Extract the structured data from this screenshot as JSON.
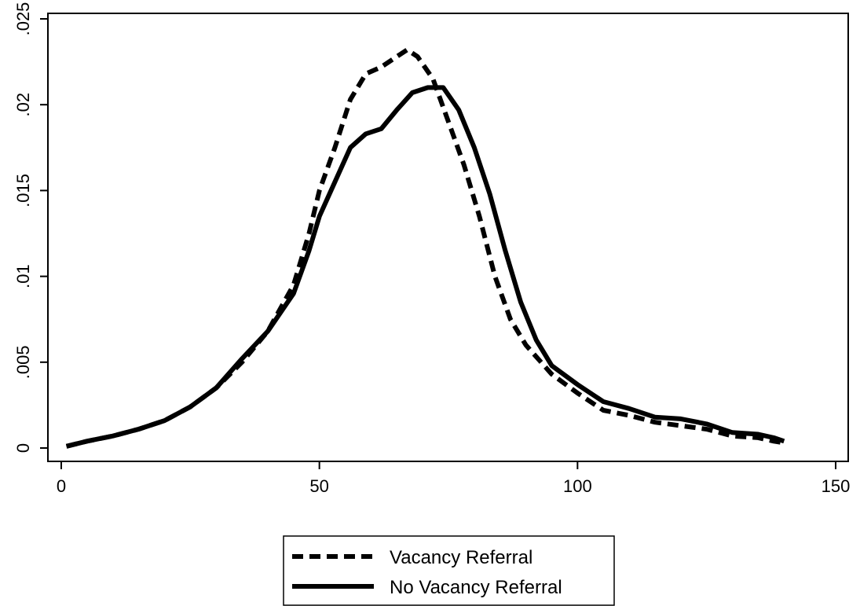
{
  "chart_data": {
    "type": "line",
    "title": "",
    "xlabel": "",
    "ylabel": "",
    "xlim": [
      0,
      150
    ],
    "ylim": [
      0,
      0.025
    ],
    "x_ticks": [
      {
        "value": 0,
        "label": "0"
      },
      {
        "value": 50,
        "label": "50"
      },
      {
        "value": 100,
        "label": "100"
      },
      {
        "value": 150,
        "label": "150"
      }
    ],
    "y_ticks": [
      {
        "value": 0,
        "label": "0"
      },
      {
        "value": 0.005,
        "label": ".005"
      },
      {
        "value": 0.01,
        "label": ".01"
      },
      {
        "value": 0.015,
        "label": ".015"
      },
      {
        "value": 0.02,
        "label": ".02"
      },
      {
        "value": 0.025,
        "label": ".025"
      }
    ],
    "grid": false,
    "legend_position": "bottom",
    "series": [
      {
        "name": "Vacancy Referral",
        "style": "dashed",
        "color": "#000000",
        "points": [
          [
            1,
            0.0001
          ],
          [
            5,
            0.0004
          ],
          [
            10,
            0.0007
          ],
          [
            15,
            0.0011
          ],
          [
            20,
            0.0016
          ],
          [
            25,
            0.0024
          ],
          [
            30,
            0.0035
          ],
          [
            35,
            0.005
          ],
          [
            40,
            0.0068
          ],
          [
            45,
            0.0095
          ],
          [
            48,
            0.0125
          ],
          [
            50,
            0.015
          ],
          [
            53,
            0.0175
          ],
          [
            56,
            0.0203
          ],
          [
            59,
            0.0218
          ],
          [
            62,
            0.0222
          ],
          [
            65,
            0.0228
          ],
          [
            67,
            0.0232
          ],
          [
            69,
            0.0228
          ],
          [
            72,
            0.0215
          ],
          [
            75,
            0.019
          ],
          [
            78,
            0.0165
          ],
          [
            81,
            0.0135
          ],
          [
            84,
            0.01
          ],
          [
            87,
            0.0075
          ],
          [
            90,
            0.006
          ],
          [
            95,
            0.0043
          ],
          [
            100,
            0.0032
          ],
          [
            105,
            0.0022
          ],
          [
            110,
            0.0019
          ],
          [
            115,
            0.0015
          ],
          [
            120,
            0.0013
          ],
          [
            125,
            0.0011
          ],
          [
            130,
            0.0007
          ],
          [
            135,
            0.0006
          ],
          [
            138,
            0.0004
          ],
          [
            140,
            0.0003
          ]
        ]
      },
      {
        "name": "No Vacancy Referral",
        "style": "solid",
        "color": "#000000",
        "points": [
          [
            1,
            0.0001
          ],
          [
            5,
            0.0004
          ],
          [
            10,
            0.0007
          ],
          [
            15,
            0.0011
          ],
          [
            20,
            0.0016
          ],
          [
            25,
            0.0024
          ],
          [
            30,
            0.0035
          ],
          [
            35,
            0.0052
          ],
          [
            40,
            0.0068
          ],
          [
            45,
            0.009
          ],
          [
            48,
            0.0115
          ],
          [
            50,
            0.0135
          ],
          [
            53,
            0.0155
          ],
          [
            56,
            0.0175
          ],
          [
            59,
            0.0183
          ],
          [
            62,
            0.0186
          ],
          [
            65,
            0.0197
          ],
          [
            68,
            0.0207
          ],
          [
            71,
            0.021
          ],
          [
            74,
            0.021
          ],
          [
            77,
            0.0197
          ],
          [
            80,
            0.0175
          ],
          [
            83,
            0.0148
          ],
          [
            86,
            0.0115
          ],
          [
            89,
            0.0085
          ],
          [
            92,
            0.0063
          ],
          [
            95,
            0.0048
          ],
          [
            100,
            0.0037
          ],
          [
            105,
            0.0027
          ],
          [
            110,
            0.0023
          ],
          [
            115,
            0.0018
          ],
          [
            120,
            0.0017
          ],
          [
            125,
            0.0014
          ],
          [
            130,
            0.0009
          ],
          [
            135,
            0.0008
          ],
          [
            138,
            0.0006
          ],
          [
            140,
            0.0004
          ]
        ]
      }
    ]
  },
  "legend": {
    "items": [
      {
        "label": "Vacancy Referral",
        "style": "dashed"
      },
      {
        "label": "No Vacancy Referral",
        "style": "solid"
      }
    ]
  }
}
